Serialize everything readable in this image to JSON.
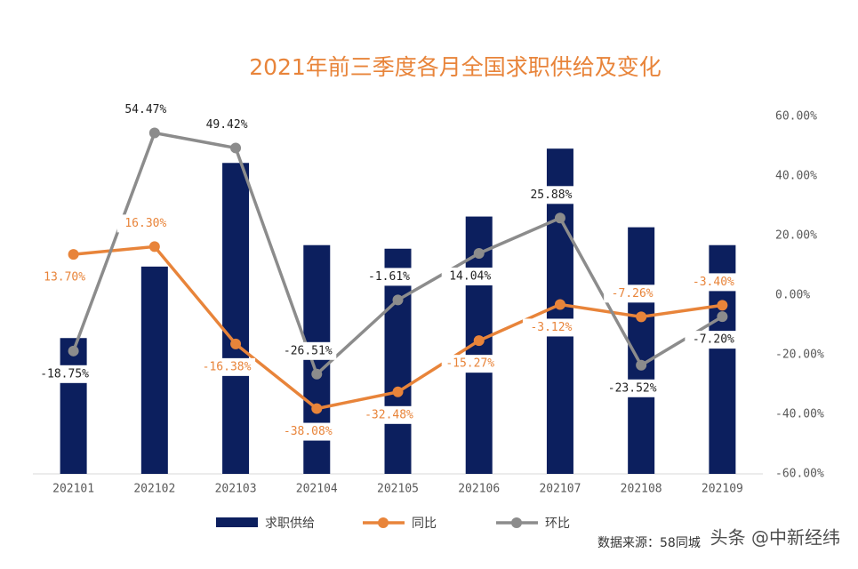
{
  "chart_data": {
    "type": "bar-line",
    "title": "2021年前三季度各月全国求职供给及变化",
    "categories": [
      "202101",
      "202102",
      "202103",
      "202104",
      "202105",
      "202106",
      "202107",
      "202108",
      "202109"
    ],
    "ylim": [
      0,
      100
    ],
    "y2lim": [
      -60,
      60
    ],
    "y2ticks": [
      {
        "value": 60,
        "label": "60.00%"
      },
      {
        "value": 40,
        "label": "40.00%"
      },
      {
        "value": 20,
        "label": "20.00%"
      },
      {
        "value": 0,
        "label": "0.00%"
      },
      {
        "value": -20,
        "label": "-20.00%"
      },
      {
        "value": -40,
        "label": "-40.00%"
      },
      {
        "value": -60,
        "label": "-60.00%"
      }
    ],
    "series": [
      {
        "name": "求职供给",
        "type": "bar",
        "color": "#0C1F5E",
        "values": [
          38,
          58,
          87,
          64,
          63,
          72,
          91,
          69,
          64
        ]
      },
      {
        "name": "同比",
        "type": "line",
        "axis": "y2",
        "color": "#E8843A",
        "values": [
          13.7,
          16.3,
          -16.38,
          -38.08,
          -32.48,
          -15.27,
          -3.12,
          -7.26,
          -3.4
        ],
        "value_labels": [
          "13.70%",
          "16.30%",
          "-16.38%",
          "-38.08%",
          "-32.48%",
          "-15.27%",
          "-3.12%",
          "-7.26%",
          "-3.40%"
        ]
      },
      {
        "name": "环比",
        "type": "line",
        "axis": "y2",
        "color": "#8C8C8C",
        "values": [
          -18.75,
          54.47,
          49.42,
          -26.51,
          -1.61,
          14.04,
          25.88,
          -23.52,
          -7.2
        ],
        "value_labels": [
          "-18.75%",
          "54.47%",
          "49.42%",
          "-26.51%",
          "-1.61%",
          "14.04%",
          "25.88%",
          "-23.52%",
          "-7.20%"
        ]
      }
    ],
    "source": "数据来源：58同城",
    "watermark": "头条 @中新经纬"
  }
}
